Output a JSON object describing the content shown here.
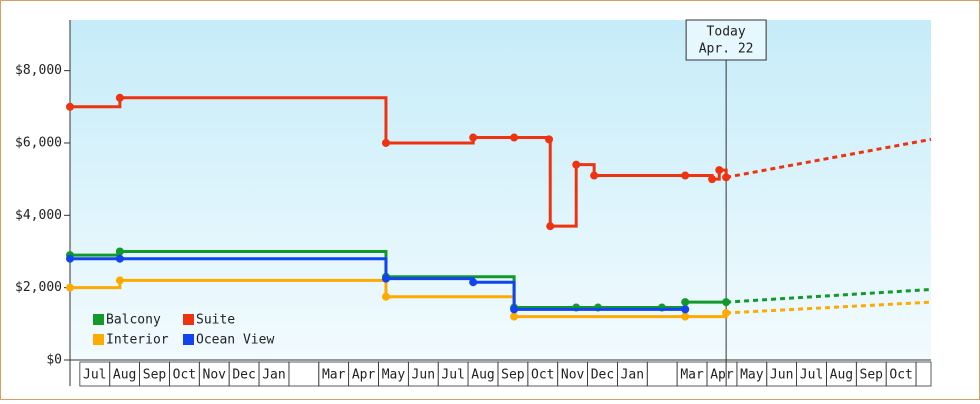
{
  "chart_data": {
    "type": "step-line",
    "categories": [
      "Jul",
      "Aug",
      "Sep",
      "Oct",
      "Nov",
      "Dec",
      "Jan",
      null,
      "Mar",
      "Apr",
      "May",
      "Jun",
      "Jul",
      "Aug",
      "Sep",
      "Oct",
      "Nov",
      "Dec",
      "Jan",
      null,
      "Mar",
      "Apr",
      "May",
      "Jun",
      "Jul",
      "Aug",
      "Sep",
      "Oct"
    ],
    "xlim": [
      -0.33,
      28.5
    ],
    "ylim": [
      0,
      9400
    ],
    "yticks": [
      {
        "value": 0,
        "label": "$0"
      },
      {
        "value": 2000,
        "label": "$2,000"
      },
      {
        "value": 4000,
        "label": "$4,000"
      },
      {
        "value": 6000,
        "label": "$6,000"
      },
      {
        "value": 8000,
        "label": "$8,000"
      }
    ],
    "annotation": {
      "x": 21.64,
      "lines": [
        "Today",
        "Apr. 22"
      ]
    },
    "series": [
      {
        "name": "Balcony",
        "color": "#11992a",
        "x": [
          -0.33,
          1.34,
          10.25,
          14.54,
          16.62,
          17.35,
          19.49,
          20.27,
          21.64
        ],
        "values": [
          2900,
          3000,
          2300,
          1450,
          1450,
          1450,
          1450,
          1600,
          1600
        ],
        "projection": {
          "x": [
            21.64,
            28.5
          ],
          "values": [
            1600,
            1950
          ]
        }
      },
      {
        "name": "Suite",
        "color": "#ee3311",
        "x": [
          -0.33,
          1.34,
          10.25,
          13.17,
          14.54,
          15.71,
          15.75,
          16.62,
          17.22,
          20.27,
          21.17,
          21.41,
          21.64
        ],
        "values": [
          7000,
          7250,
          6000,
          6150,
          6150,
          6100,
          3700,
          5400,
          5100,
          5100,
          5000,
          5250,
          5050
        ],
        "projection": {
          "x": [
            21.64,
            28.5
          ],
          "values": [
            5050,
            6100
          ]
        }
      },
      {
        "name": "Interior",
        "color": "#ffaa00",
        "x": [
          -0.33,
          1.34,
          10.25,
          14.54,
          20.27,
          21.64
        ],
        "values": [
          2000,
          2200,
          1750,
          1200,
          1200,
          1300
        ],
        "projection": {
          "x": [
            21.64,
            28.5
          ],
          "values": [
            1300,
            1600
          ]
        }
      },
      {
        "name": "Ocean View",
        "color": "#1144ee",
        "x": [
          -0.33,
          1.34,
          10.25,
          13.17,
          14.54,
          20.27
        ],
        "values": [
          2800,
          2800,
          2250,
          2150,
          1400,
          1400
        ]
      }
    ]
  }
}
